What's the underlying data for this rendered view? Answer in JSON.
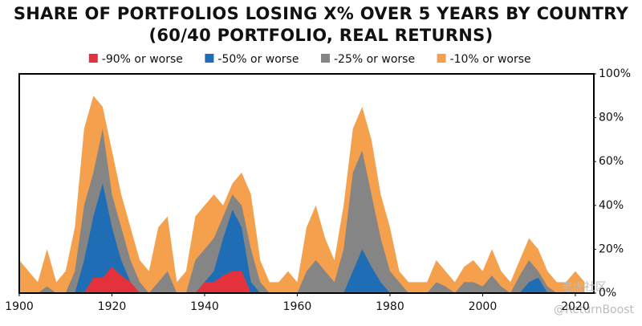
{
  "chart_data": {
    "type": "area",
    "title": "SHARE OF PORTFOLIOS LOSING X% OVER 5 YEARS BY COUNTRY",
    "subtitle": "(60/40 PORTFOLIO, REAL RETURNS)",
    "x": [
      1900,
      1902,
      1904,
      1906,
      1908,
      1910,
      1912,
      1914,
      1916,
      1918,
      1920,
      1922,
      1924,
      1926,
      1928,
      1930,
      1932,
      1934,
      1936,
      1938,
      1940,
      1942,
      1944,
      1946,
      1948,
      1950,
      1952,
      1954,
      1956,
      1958,
      1960,
      1962,
      1964,
      1966,
      1968,
      1970,
      1972,
      1974,
      1976,
      1978,
      1980,
      1982,
      1984,
      1986,
      1988,
      1990,
      1992,
      1994,
      1996,
      1998,
      2000,
      2002,
      2004,
      2006,
      2008,
      2010,
      2012,
      2014,
      2016,
      2018,
      2020,
      2022
    ],
    "series": [
      {
        "name": "-10% or worse",
        "color": "#f4a04c",
        "values": [
          15,
          10,
          5,
          20,
          5,
          10,
          30,
          75,
          90,
          85,
          65,
          45,
          30,
          15,
          10,
          30,
          35,
          5,
          10,
          35,
          40,
          45,
          40,
          50,
          55,
          45,
          15,
          5,
          5,
          10,
          5,
          30,
          40,
          25,
          15,
          40,
          75,
          85,
          70,
          45,
          30,
          10,
          5,
          5,
          5,
          15,
          10,
          5,
          12,
          15,
          10,
          20,
          10,
          5,
          15,
          25,
          20,
          10,
          5,
          5,
          10,
          5
        ]
      },
      {
        "name": "-25% or worse",
        "color": "#858585",
        "values": [
          0,
          0,
          0,
          3,
          0,
          0,
          10,
          40,
          55,
          75,
          45,
          30,
          15,
          5,
          0,
          5,
          10,
          0,
          0,
          15,
          20,
          25,
          35,
          45,
          40,
          20,
          5,
          0,
          0,
          0,
          0,
          10,
          15,
          10,
          5,
          20,
          55,
          65,
          45,
          25,
          10,
          5,
          0,
          0,
          0,
          5,
          3,
          0,
          5,
          5,
          3,
          8,
          3,
          0,
          8,
          15,
          10,
          3,
          0,
          0,
          0,
          0
        ]
      },
      {
        "name": "-50% or worse",
        "color": "#1f6db4",
        "values": [
          0,
          0,
          0,
          0,
          0,
          0,
          0,
          15,
          35,
          50,
          30,
          15,
          5,
          0,
          0,
          0,
          0,
          0,
          0,
          0,
          5,
          10,
          25,
          38,
          30,
          5,
          0,
          0,
          0,
          0,
          0,
          0,
          0,
          0,
          0,
          0,
          10,
          20,
          12,
          5,
          0,
          0,
          0,
          0,
          0,
          0,
          0,
          0,
          0,
          0,
          0,
          0,
          0,
          0,
          0,
          5,
          7,
          0,
          0,
          0,
          0,
          0
        ]
      },
      {
        "name": "-90% or worse",
        "color": "#e3323c",
        "values": [
          0,
          0,
          0,
          0,
          0,
          0,
          0,
          0,
          7,
          7,
          12,
          8,
          5,
          0,
          0,
          0,
          0,
          0,
          0,
          0,
          5,
          5,
          8,
          10,
          10,
          0,
          0,
          0,
          0,
          0,
          0,
          0,
          0,
          0,
          0,
          0,
          0,
          0,
          0,
          0,
          0,
          0,
          0,
          0,
          0,
          0,
          0,
          0,
          0,
          0,
          0,
          0,
          0,
          0,
          0,
          0,
          0,
          0,
          0,
          0,
          0,
          0
        ]
      }
    ],
    "legend_order": [
      3,
      2,
      1,
      0
    ],
    "xlim": [
      1900,
      2024
    ],
    "xticks": [
      1900,
      1920,
      1940,
      1960,
      1980,
      2000,
      2020
    ],
    "ylim": [
      0,
      100
    ],
    "yticks": [
      {
        "value": 0,
        "label": "0%"
      },
      {
        "value": 20,
        "label": "20%"
      },
      {
        "value": 40,
        "label": "40%"
      },
      {
        "value": 60,
        "label": "60%"
      },
      {
        "value": 80,
        "label": "80%"
      },
      {
        "value": 100,
        "label": "100%"
      }
    ],
    "watermark": [
      "老虎社区",
      "@ReturnBoost"
    ]
  }
}
